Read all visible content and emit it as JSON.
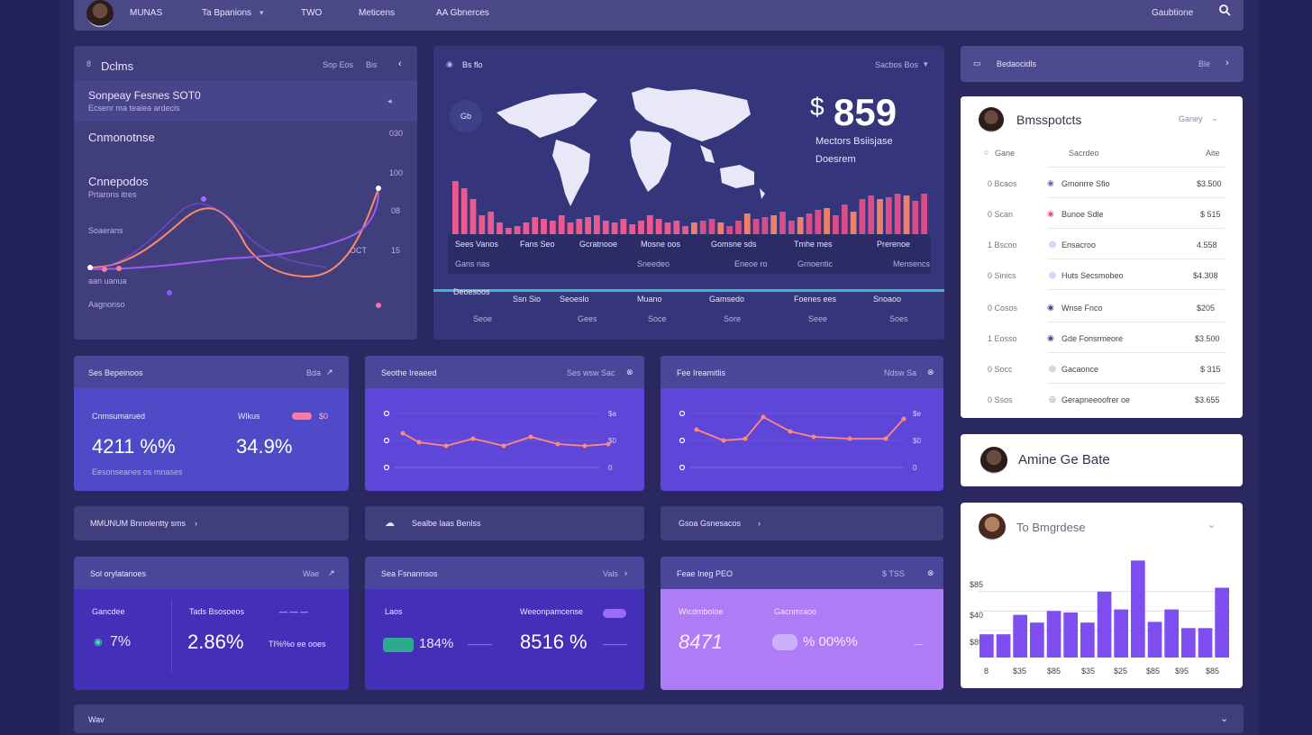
{
  "top_nav": {
    "items": [
      "MUNAS",
      "Ta Bpanions",
      "TWO",
      "Meticens",
      "AA Gbnerces"
    ],
    "right_label": "Gaubtione"
  },
  "left_panel": {
    "title": "Dclms",
    "header_right": [
      "Sop Eos",
      "Bis"
    ],
    "row1_title": "Sonpeay Fesnes SOT0",
    "row1_sub": "Ecsenr ma teaiea ardecis",
    "row2_title": "Cnmonotnse",
    "row3_title": "Cnnepodos",
    "row3_sub": "Prtarons itres",
    "left_labels": [
      "Soaerans",
      "aan uanua",
      "Aagnoriso"
    ],
    "right_ticks": [
      "030",
      "100",
      "08",
      "15",
      "OCT",
      "100"
    ]
  },
  "map_panel": {
    "title": "Bs flo",
    "header_right": "Sacbos Bos",
    "badge": "Gb",
    "kpi_value": "859",
    "kpi_symbol": "$",
    "kpi_label1": "Mectors Bsiisjase",
    "kpi_label2": "Doesrem",
    "timeline_top": [
      "Sees Vanos",
      "Fans Seo",
      "Gcratnooe",
      "Mosne oos",
      "Gomsne sds",
      "Tmhe mes",
      "Prerenoe",
      "Gesemocno"
    ],
    "timeline_mid": [
      "Gans nas",
      "Sneedeo",
      "Eneoe ro",
      "Grnoentic",
      "Mensencs"
    ],
    "axis_labels": [
      "Deoesoos",
      "Ssn Sio",
      "Seoeslo",
      "Muano",
      "Gamsedo",
      "Foenes ees",
      "Snoaoo"
    ],
    "axis_labels_bottom": [
      "Seoe",
      "Gees",
      "Soce",
      "Sore",
      "Seee",
      "Soes"
    ]
  },
  "right_top": {
    "label": "Bedaocidls",
    "right": "Ble"
  },
  "list_card": {
    "title": "Bmsspotcts",
    "filter": "Ganey",
    "col_header": [
      "Gane",
      "Sacrdeo",
      "Aite"
    ],
    "rows": [
      {
        "n": "0 Bcaos",
        "name": "Gmonrre Sfio",
        "val": "$3.500"
      },
      {
        "n": "0 Scan",
        "name": "Bunoe Sdle",
        "val": "$ 515"
      },
      {
        "n": "1 Bscoo",
        "name": "Ensacroo",
        "val": "4.558"
      },
      {
        "n": "0 Sinics",
        "name": "Huts Secsmobeo",
        "val": "$4.308"
      },
      {
        "n": "0 Cosos",
        "name": "Wnse Fnco",
        "val": "$205"
      },
      {
        "n": "1 Eosso",
        "name": "Gde Fonsrmeore",
        "val": "$3.500"
      },
      {
        "n": "0 Socc",
        "name": "Gacaonce",
        "val": "$ 315"
      },
      {
        "n": "0 Ssos",
        "name": "Gerapneeoofrer oe",
        "val": "$3.655"
      }
    ]
  },
  "profile_card": {
    "name": "Amine Ge Bate"
  },
  "bar_card": {
    "title": "To Bmgrdese",
    "y_ticks": [
      "$85",
      "$40",
      "$85"
    ],
    "x_ticks": [
      "8",
      "$35",
      "$85",
      "$35",
      "$25",
      "$85",
      "$95",
      "$85"
    ],
    "values": [
      0.3,
      0.3,
      0.55,
      0.45,
      0.6,
      0.58,
      0.45,
      0.85,
      0.62,
      1.25,
      0.46,
      0.62,
      0.38,
      0.38,
      0.9
    ]
  },
  "mini1": {
    "title": "Ses Bepeinoos",
    "right": "Bda",
    "label_l": "Cnmsumarued",
    "label_r": "Wlkus",
    "value_l": "4211 %%",
    "value_r": "34.9%",
    "sub": "Eesonseanes os mnases"
  },
  "mini2": {
    "title": "Seothe Ireaeed",
    "right": "Ses wsw Sac",
    "ticks": [
      "0",
      "0",
      "0"
    ],
    "right_ticks": [
      "$a",
      "$0",
      "0"
    ]
  },
  "mini3": {
    "title": "Fee Ireamitlis",
    "right": "Ndsw Sa",
    "ticks": [
      "0",
      "0",
      "0"
    ],
    "right_ticks": [
      "$e",
      "$0",
      "0"
    ]
  },
  "strips": [
    "MMUNUM Bnnolentty sms",
    "Sealbe laas Benlss",
    "Gsoa   Gsnesacos"
  ],
  "kpi1": {
    "title": "Sol orylatanoes",
    "right": "Wae",
    "label_l": "Gancdee",
    "label_r": "Tads Bsosoeos",
    "value_l": "7%",
    "value_r": "2.86%",
    "suffix": "TI%%o ee ooes"
  },
  "kpi2": {
    "title": "Sea Fsnannsos",
    "right": "Vals",
    "label_l": "Laos",
    "label_r": "Weeonpamcense",
    "value_l": "184%",
    "value_r": "8516 %"
  },
  "kpi3": {
    "title": "Feae Ineg PEO",
    "right": "$ TSS",
    "label_l": "Wicdmboloe",
    "label_r": "Gacnmraoo",
    "value_l": "8471",
    "value_r": "% 00%%"
  },
  "footer": {
    "label": "Wav"
  },
  "colors": {
    "accent": "#7e4ef0",
    "pink": "#ff6f9b",
    "purple_card": "#5a43d4",
    "lilac": "#b07cf6"
  }
}
